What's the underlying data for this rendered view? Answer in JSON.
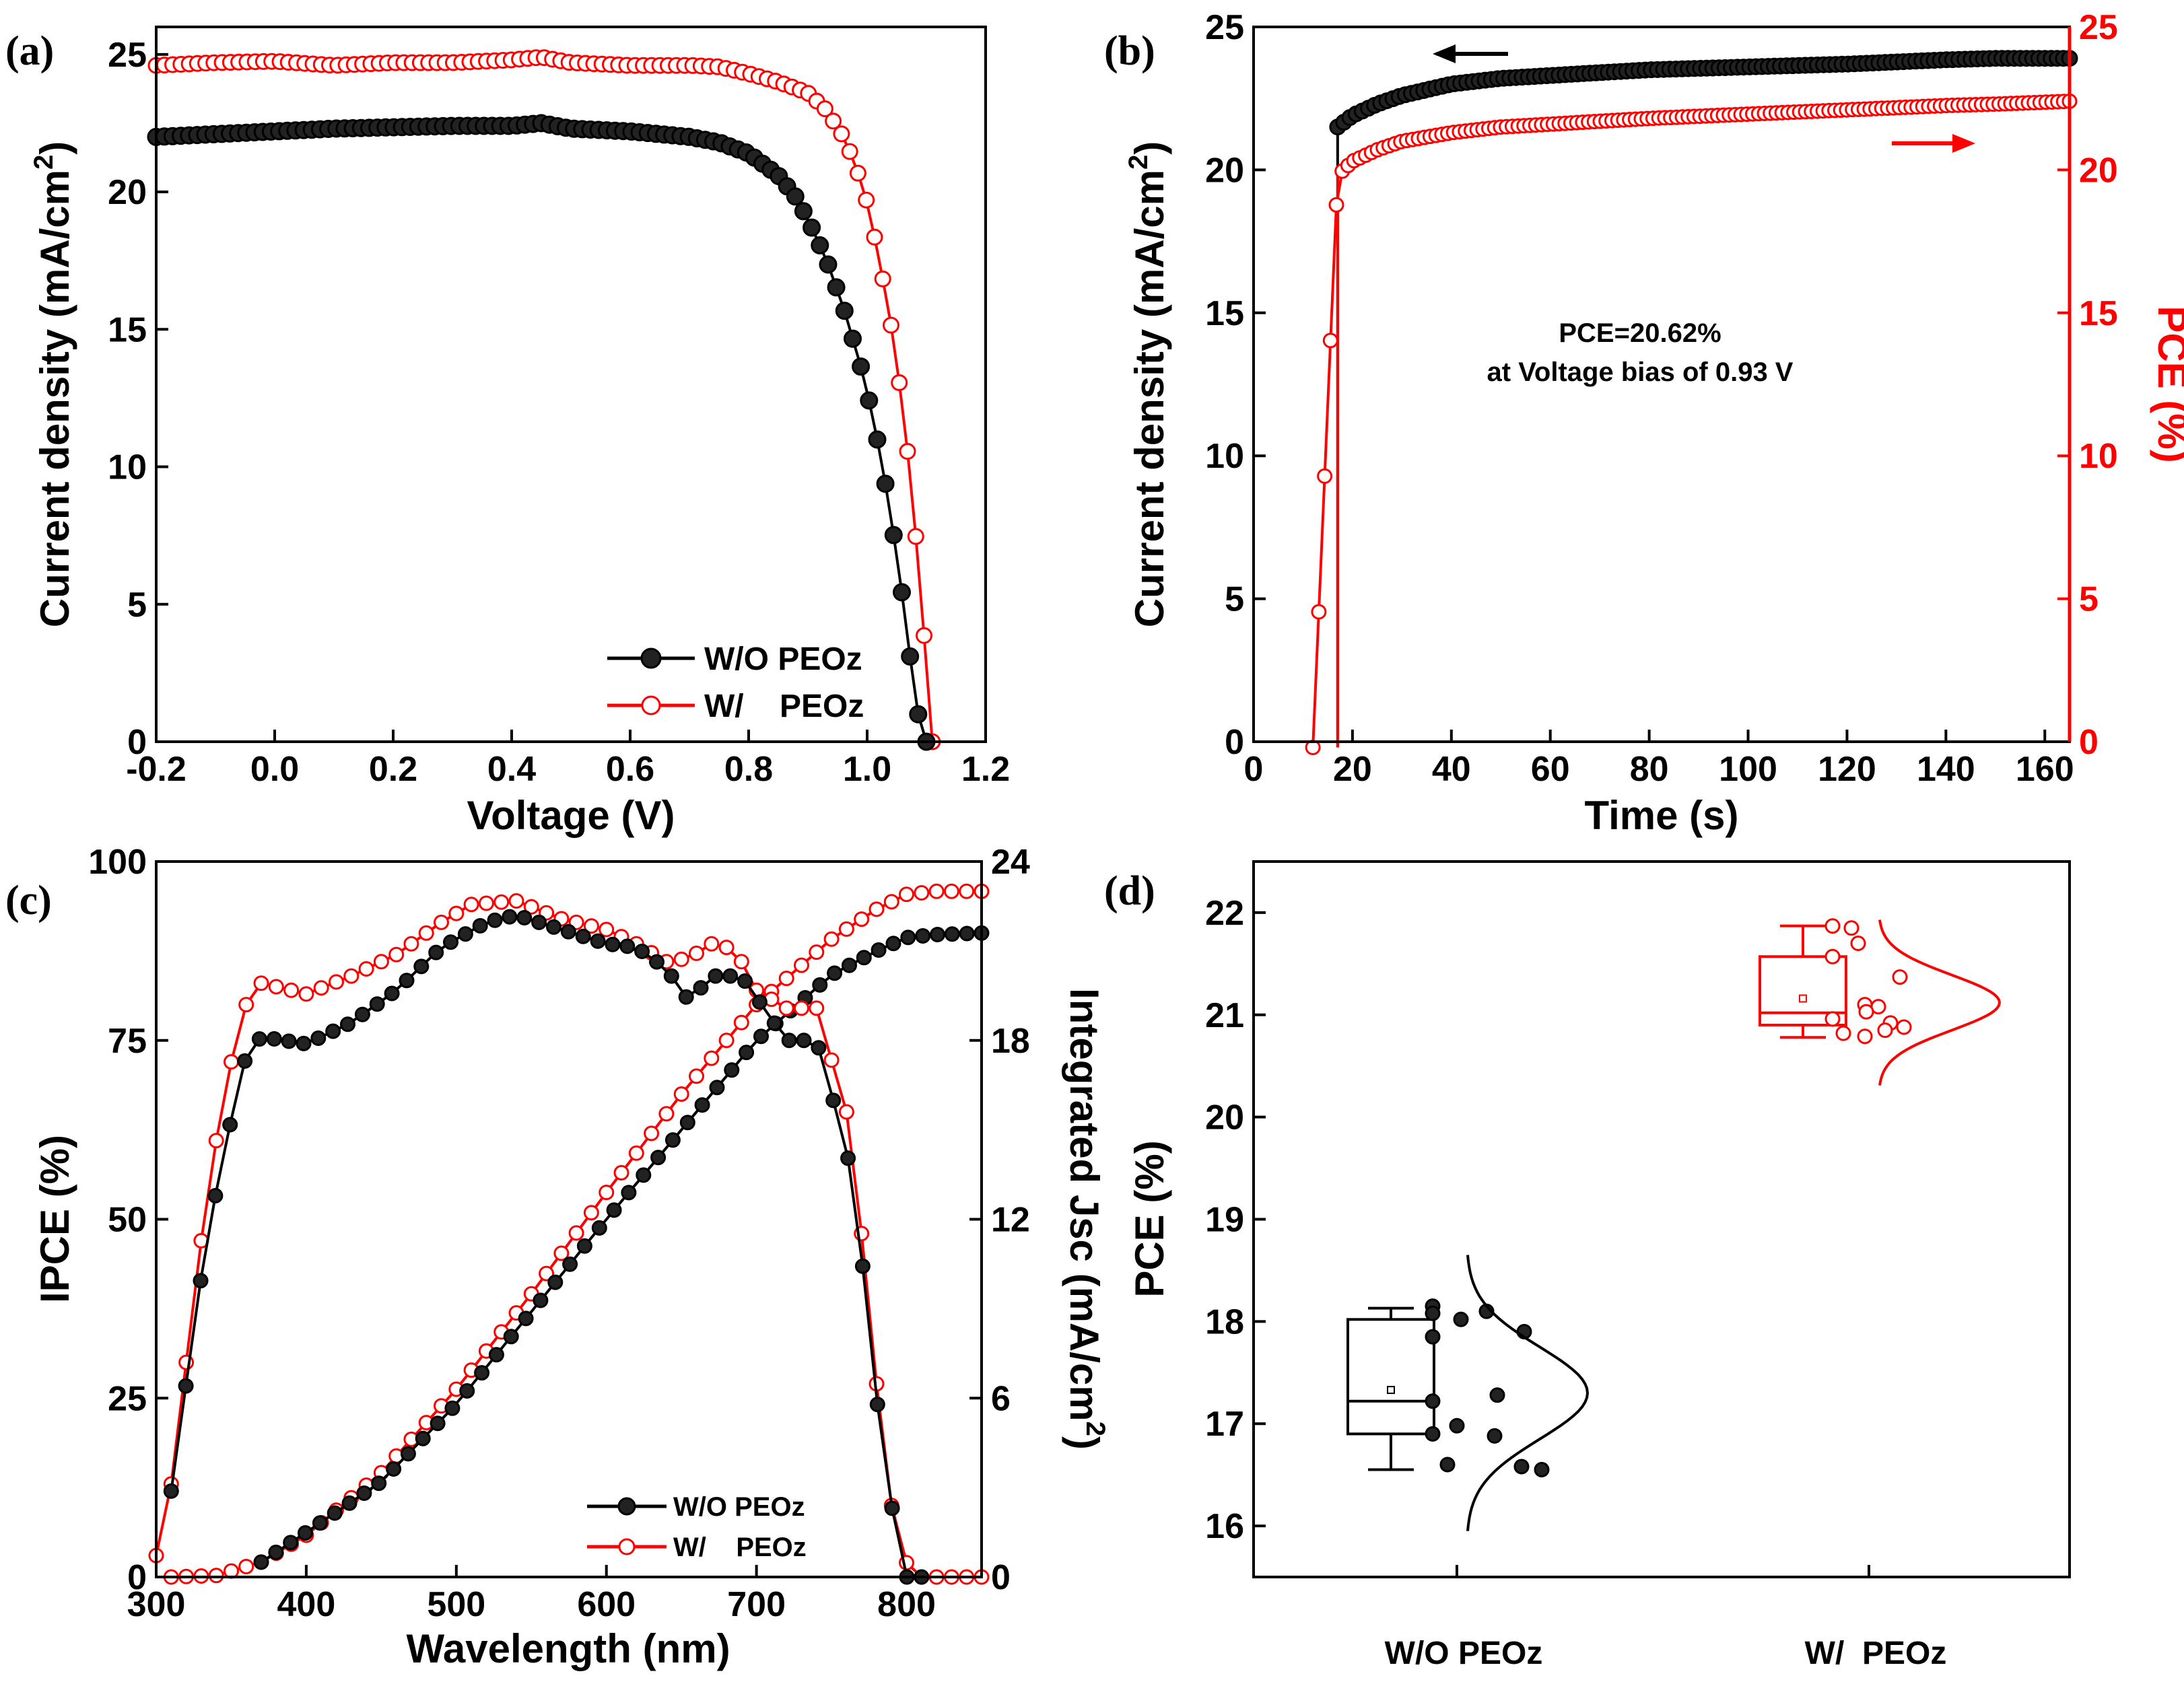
{
  "colors": {
    "black": "#000000",
    "red": "#ff0000"
  },
  "chart_data": [
    {
      "panel": "(a)",
      "type": "line",
      "title": "",
      "xlabel": "Voltage (V)",
      "ylabel": "Current density (mA/cm2)",
      "ylabel_main": "Current density (mA/cm",
      "ylabel_sup": "2",
      "ylabel_end": ")",
      "xlim": [
        -0.2,
        1.2
      ],
      "ylim": [
        0,
        26
      ],
      "xticks": [
        -0.2,
        0.0,
        0.2,
        0.4,
        0.6,
        0.8,
        1.0,
        1.2
      ],
      "xtick_labels": [
        "-0.2",
        "0.0",
        "0.2",
        "0.4",
        "0.6",
        "0.8",
        "1.0",
        "1.2"
      ],
      "yticks": [
        0,
        5,
        10,
        15,
        20,
        25
      ],
      "ytick_labels": [
        "0",
        "5",
        "10",
        "15",
        "20",
        "25"
      ],
      "legend": [
        {
          "label": "W/O PEOz",
          "color": "#000000",
          "marker": "filled"
        },
        {
          "label": "W/    PEOz",
          "color": "#ff0000",
          "marker": "open"
        }
      ],
      "series": [
        {
          "name": "W/O PEOz",
          "color": "#000000",
          "marker": "filled",
          "x": [
            -0.2,
            -0.1,
            0.0,
            0.1,
            0.2,
            0.3,
            0.4,
            0.45,
            0.5,
            0.6,
            0.7,
            0.75,
            0.8,
            0.85,
            0.88,
            0.9,
            0.93,
            0.96,
            0.99,
            1.01,
            1.03,
            1.05,
            1.06,
            1.07,
            1.08,
            1.09,
            1.1
          ],
          "y": [
            22.0,
            22.1,
            22.2,
            22.3,
            22.35,
            22.4,
            22.4,
            22.5,
            22.3,
            22.2,
            22.0,
            21.8,
            21.4,
            20.6,
            19.8,
            19.0,
            17.6,
            15.8,
            13.6,
            11.8,
            9.5,
            6.8,
            5.2,
            3.5,
            1.8,
            0.5,
            0.0
          ]
        },
        {
          "name": "W/ PEOz",
          "color": "#ff0000",
          "marker": "open",
          "x": [
            -0.2,
            -0.1,
            0.0,
            0.1,
            0.2,
            0.3,
            0.4,
            0.45,
            0.5,
            0.6,
            0.7,
            0.75,
            0.8,
            0.85,
            0.9,
            0.93,
            0.96,
            0.98,
            1.0,
            1.02,
            1.04,
            1.06,
            1.07,
            1.08,
            1.09,
            1.1,
            1.11
          ],
          "y": [
            24.6,
            24.7,
            24.75,
            24.6,
            24.7,
            24.7,
            24.8,
            24.9,
            24.7,
            24.6,
            24.6,
            24.55,
            24.3,
            24.0,
            23.6,
            23.0,
            22.0,
            21.0,
            19.6,
            17.6,
            15.2,
            12.2,
            10.2,
            8.0,
            5.5,
            2.8,
            0.0
          ]
        }
      ]
    },
    {
      "panel": "(b)",
      "type": "line",
      "title": "",
      "xlabel": "Time (s)",
      "ylabel": "Current density (mA/cm2)",
      "ylabel_main": "Current density (mA/cm",
      "ylabel_sup": "2",
      "ylabel_end": ")",
      "ylabel_right": "PCE (%)",
      "xlim": [
        0,
        165
      ],
      "ylim": [
        0,
        25
      ],
      "ylim_right": [
        0,
        25
      ],
      "xticks": [
        0,
        20,
        40,
        60,
        80,
        100,
        120,
        140,
        160
      ],
      "xtick_labels": [
        "0",
        "20",
        "40",
        "60",
        "80",
        "100",
        "120",
        "140",
        "160"
      ],
      "yticks": [
        0,
        5,
        10,
        15,
        20,
        25
      ],
      "ytick_labels": [
        "0",
        "5",
        "10",
        "15",
        "20",
        "25"
      ],
      "ytick_labels_right": [
        "0",
        "5",
        "10",
        "15",
        "20",
        "25"
      ],
      "annotation_line1": "PCE=20.62%",
      "annotation_line2": "at Voltage bias of 0.93 V",
      "series": [
        {
          "name": "Current density",
          "axis": "left",
          "color": "#000000",
          "marker": "filled",
          "x": [
            17,
            20,
            25,
            30,
            40,
            50,
            60,
            80,
            100,
            120,
            140,
            150,
            165
          ],
          "y": [
            21.5,
            21.9,
            22.3,
            22.6,
            23.0,
            23.2,
            23.3,
            23.5,
            23.6,
            23.7,
            23.85,
            23.9,
            23.9
          ]
        },
        {
          "name": "PCE",
          "axis": "right",
          "color": "#ff0000",
          "marker": "open",
          "x": [
            12,
            17,
            20,
            25,
            30,
            40,
            50,
            60,
            80,
            100,
            120,
            140,
            150,
            165
          ],
          "y": [
            -0.2,
            19.8,
            20.3,
            20.7,
            21.0,
            21.3,
            21.5,
            21.6,
            21.8,
            21.95,
            22.1,
            22.25,
            22.3,
            22.4
          ]
        }
      ]
    },
    {
      "panel": "(c)",
      "type": "line",
      "title": "",
      "xlabel": "Wavelength (nm)",
      "ylabel": "IPCE (%)",
      "ylabel_right": "Integrated Jsc (mA/cm2)",
      "ylabel_right_main": "Integrated Jsc (mA/cm",
      "ylabel_right_sup": "2",
      "ylabel_right_end": ")",
      "xlim": [
        300,
        850
      ],
      "ylim": [
        0,
        100
      ],
      "ylim_right": [
        0,
        24
      ],
      "xticks": [
        300,
        400,
        500,
        600,
        700,
        800
      ],
      "xtick_labels": [
        "300",
        "400",
        "500",
        "600",
        "700",
        "800"
      ],
      "yticks": [
        0,
        25,
        50,
        75,
        100
      ],
      "ytick_labels": [
        "0",
        "25",
        "50",
        "75",
        "100"
      ],
      "ytick_labels_right": [
        "0",
        "6",
        "12",
        "18",
        "24"
      ],
      "legend": [
        {
          "label": "W/O PEOz",
          "color": "#000000",
          "marker": "filled"
        },
        {
          "label": "W/    PEOz",
          "color": "#ff0000",
          "marker": "open"
        }
      ],
      "series": [
        {
          "name": "IPCE W/O PEOz",
          "axis": "left",
          "color": "#000000",
          "marker": "filled",
          "x": [
            310,
            320,
            330,
            340,
            350,
            360,
            370,
            400,
            430,
            460,
            490,
            520,
            540,
            570,
            600,
            620,
            640,
            655,
            670,
            690,
            700,
            720,
            740,
            760,
            770,
            780,
            790,
            800,
            810
          ],
          "y": [
            12,
            27,
            42,
            54,
            64,
            73,
            75.5,
            74.5,
            77.5,
            82,
            88,
            91.5,
            92.5,
            90.5,
            88.5,
            88,
            85,
            80.5,
            84,
            84,
            81,
            75,
            75,
            60,
            45,
            25,
            10,
            0,
            0
          ]
        },
        {
          "name": "IPCE W/ PEOz",
          "axis": "left",
          "color": "#ff0000",
          "marker": "open",
          "x": [
            300,
            310,
            320,
            330,
            340,
            350,
            360,
            370,
            400,
            430,
            460,
            490,
            510,
            540,
            570,
            600,
            620,
            640,
            655,
            670,
            680,
            690,
            700,
            720,
            740,
            760,
            770,
            780,
            790,
            800,
            810,
            820,
            840,
            850
          ],
          "y": [
            3,
            13,
            30,
            47,
            61,
            72,
            80,
            83,
            81.5,
            84,
            87,
            91.5,
            94,
            94.5,
            92,
            90.5,
            88.5,
            86,
            86.5,
            88.5,
            88,
            86,
            82,
            79.5,
            79.5,
            65,
            48,
            27,
            10,
            2,
            0,
            0,
            0,
            0
          ]
        },
        {
          "name": "Jsc W/O PEOz",
          "axis": "right",
          "color": "#000000",
          "marker": "filled",
          "x": [
            370,
            400,
            450,
            500,
            550,
            600,
            650,
            700,
            750,
            780,
            800,
            820,
            850
          ],
          "y": [
            0.5,
            1.5,
            3.2,
            5.8,
            8.9,
            12.0,
            15.0,
            18.0,
            20.2,
            21.0,
            21.45,
            21.55,
            21.6
          ]
        },
        {
          "name": "Jsc W/ PEOz",
          "axis": "right",
          "color": "#ff0000",
          "marker": "open",
          "x": [
            310,
            340,
            370,
            400,
            450,
            500,
            550,
            600,
            650,
            700,
            750,
            780,
            800,
            820,
            850
          ],
          "y": [
            0.0,
            0.05,
            0.5,
            1.4,
            3.5,
            6.3,
            9.5,
            12.9,
            16.2,
            19.2,
            21.4,
            22.4,
            22.9,
            23.0,
            23.0
          ]
        }
      ]
    },
    {
      "panel": "(d)",
      "type": "box",
      "title": "",
      "xlabel": "",
      "ylabel": "PCE (%)",
      "ylim": [
        15.5,
        22.5
      ],
      "yticks": [
        16,
        17,
        18,
        19,
        20,
        21,
        22
      ],
      "ytick_labels": [
        "16",
        "17",
        "18",
        "19",
        "20",
        "21",
        "22"
      ],
      "categories": [
        "W/O PEOz",
        "W/  PEOz"
      ],
      "groups": [
        {
          "name": "W/O PEOz",
          "color": "#000000",
          "marker": "filled",
          "min": 16.55,
          "q1": 16.9,
          "median": 17.22,
          "q3": 18.02,
          "max": 18.13,
          "mean": 17.33,
          "points": [
            18.15,
            18.1,
            18.08,
            18.02,
            17.9,
            17.85,
            17.28,
            17.22,
            16.98,
            16.9,
            16.88,
            16.6,
            16.58,
            16.55
          ],
          "dist_mean": 17.3,
          "dist_sd": 0.45
        },
        {
          "name": "W/ PEOz",
          "color": "#ff0000",
          "marker": "open",
          "min": 20.78,
          "q1": 20.9,
          "median": 21.02,
          "q3": 21.57,
          "max": 21.87,
          "mean": 21.16,
          "points": [
            21.87,
            21.85,
            21.7,
            21.57,
            21.37,
            21.1,
            21.08,
            21.03,
            20.96,
            20.92,
            20.88,
            20.85,
            20.82,
            20.79
          ],
          "dist_mean": 21.12,
          "dist_sd": 0.27
        }
      ]
    }
  ]
}
